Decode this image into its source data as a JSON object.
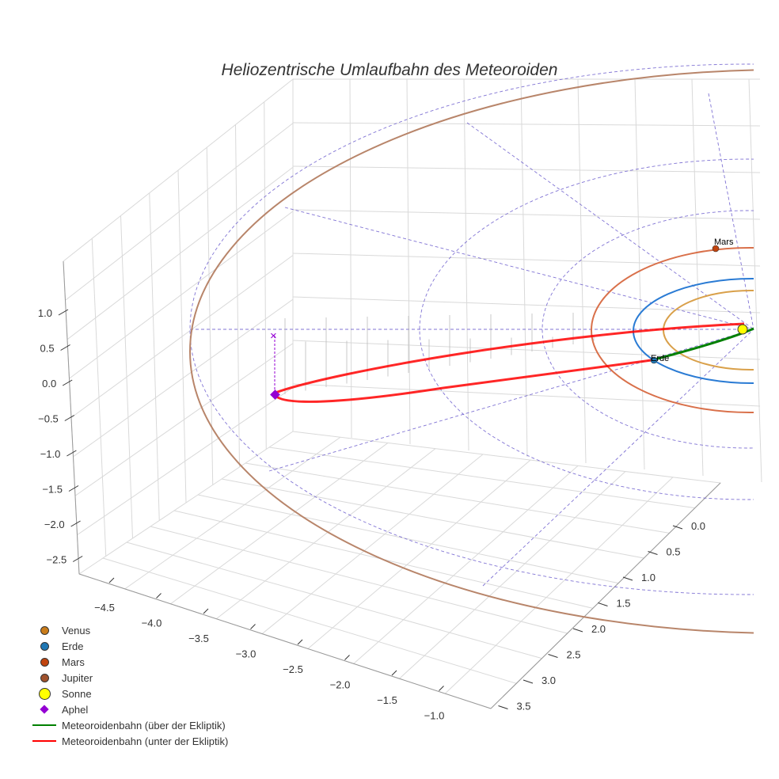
{
  "chart_data": {
    "type": "line3d",
    "title": "Heliozentrische Umlaufbahn des Meteoroiden",
    "x_ticks": [
      "−4.5",
      "−4.0",
      "−3.5",
      "−3.0",
      "−2.5",
      "−2.0",
      "−1.5",
      "−1.0"
    ],
    "y_ticks": [
      "0.0",
      "0.5",
      "1.0",
      "1.5",
      "2.0",
      "2.5",
      "3.0",
      "3.5"
    ],
    "z_ticks": [
      "1.0",
      "0.5",
      "0.0",
      "−0.5",
      "−1.0",
      "−1.5",
      "−2.0",
      "−2.5"
    ],
    "annotations": {
      "mars": "Mars",
      "erde": "Erde"
    },
    "legend_position": "bottom-left",
    "legend": [
      {
        "label": "Venus",
        "color": "#c97c1a",
        "marker": "circle"
      },
      {
        "label": "Erde",
        "color": "#1f77b4",
        "marker": "circle"
      },
      {
        "label": "Mars",
        "color": "#c1440e",
        "marker": "circle"
      },
      {
        "label": "Jupiter",
        "color": "#a0522d",
        "marker": "circle"
      },
      {
        "label": "Sonne",
        "color": "#ffff00",
        "marker": "circle-large"
      },
      {
        "label": "Aphel",
        "color": "#9400d3",
        "marker": "diamond"
      },
      {
        "label": "Meteoroidenbahn (über der Ekliptik)",
        "color": "#008000",
        "marker": "line"
      },
      {
        "label": "Meteoroidenbahn (unter der Ekliptik)",
        "color": "#ff0000",
        "marker": "line"
      }
    ],
    "orbit_colors": {
      "venus": "#d9a04a",
      "erde": "#2a7bd4",
      "mars": "#d9704a",
      "jupiter": "#b8856a"
    }
  }
}
